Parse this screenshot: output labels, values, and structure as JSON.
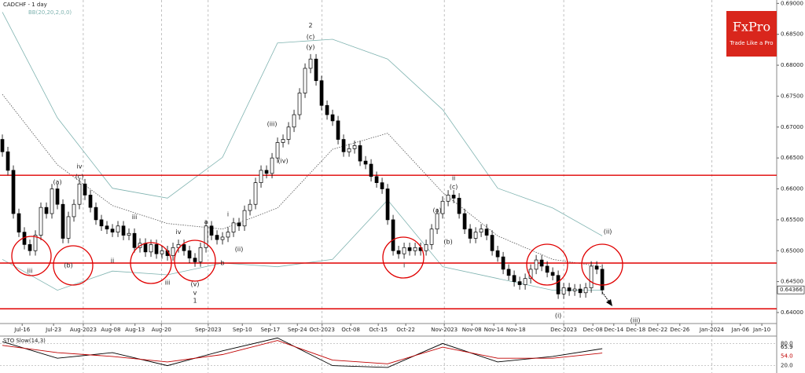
{
  "header": {
    "symbol": "CADCHF - 1 day",
    "indicator": "BB(20,20,2,0,0)"
  },
  "logo": {
    "brand": "FxPro",
    "tagline": "Trade Like a Pro"
  },
  "chart_data": [
    {
      "type": "candlestick",
      "colors": {
        "up": "#ffffff",
        "down": "#000000"
      },
      "candles": [
        [
          0.668,
          0.6688,
          0.6652,
          0.666
        ],
        [
          0.666,
          0.6668,
          0.6622,
          0.663
        ],
        [
          0.663,
          0.6638,
          0.6552,
          0.656
        ],
        [
          0.656,
          0.6568,
          0.6522,
          0.653
        ],
        [
          0.653,
          0.6538,
          0.6502,
          0.651
        ],
        [
          0.651,
          0.6518,
          0.6492,
          0.65
        ],
        [
          0.65,
          0.6533,
          0.6492,
          0.6525
        ],
        [
          0.6525,
          0.6578,
          0.6517,
          0.657
        ],
        [
          0.657,
          0.6578,
          0.6552,
          0.656
        ],
        [
          0.656,
          0.6608,
          0.6552,
          0.66
        ],
        [
          0.66,
          0.6608,
          0.6567,
          0.6575
        ],
        [
          0.6575,
          0.6583,
          0.6512,
          0.652
        ],
        [
          0.652,
          0.6563,
          0.6512,
          0.6555
        ],
        [
          0.6555,
          0.6583,
          0.6547,
          0.6575
        ],
        [
          0.6575,
          0.6616,
          0.6567,
          0.6608
        ],
        [
          0.6608,
          0.6616,
          0.6582,
          0.659
        ],
        [
          0.659,
          0.6598,
          0.6562,
          0.657
        ],
        [
          0.657,
          0.6578,
          0.6542,
          0.655
        ],
        [
          0.655,
          0.6558,
          0.6532,
          0.654
        ],
        [
          0.654,
          0.6548,
          0.6527,
          0.6535
        ],
        [
          0.6535,
          0.6543,
          0.6522,
          0.653
        ],
        [
          0.653,
          0.6548,
          0.6522,
          0.654
        ],
        [
          0.654,
          0.6548,
          0.6517,
          0.6525
        ],
        [
          0.6525,
          0.6536,
          0.6517,
          0.6528
        ],
        [
          0.6528,
          0.6536,
          0.6497,
          0.6505
        ],
        [
          0.6505,
          0.652,
          0.6497,
          0.6512
        ],
        [
          0.6512,
          0.652,
          0.649,
          0.6498
        ],
        [
          0.6498,
          0.6518,
          0.649,
          0.651
        ],
        [
          0.651,
          0.6518,
          0.6487,
          0.6495
        ],
        [
          0.6495,
          0.6508,
          0.6487,
          0.65
        ],
        [
          0.65,
          0.6508,
          0.6484,
          0.6492
        ],
        [
          0.6492,
          0.6513,
          0.6484,
          0.6505
        ],
        [
          0.6505,
          0.6518,
          0.6497,
          0.651
        ],
        [
          0.651,
          0.6518,
          0.6492,
          0.65
        ],
        [
          0.65,
          0.6508,
          0.648,
          0.6488
        ],
        [
          0.6488,
          0.6496,
          0.6474,
          0.6482
        ],
        [
          0.6482,
          0.6513,
          0.6474,
          0.6505
        ],
        [
          0.6505,
          0.6548,
          0.6497,
          0.654
        ],
        [
          0.654,
          0.6548,
          0.6517,
          0.6525
        ],
        [
          0.6525,
          0.6533,
          0.651,
          0.6518
        ],
        [
          0.6518,
          0.653,
          0.651,
          0.6522
        ],
        [
          0.6522,
          0.6538,
          0.6514,
          0.653
        ],
        [
          0.653,
          0.6553,
          0.6522,
          0.6545
        ],
        [
          0.6545,
          0.6553,
          0.6532,
          0.654
        ],
        [
          0.654,
          0.6573,
          0.6532,
          0.6565
        ],
        [
          0.6565,
          0.6583,
          0.6557,
          0.6575
        ],
        [
          0.6575,
          0.6618,
          0.6567,
          0.661
        ],
        [
          0.661,
          0.6638,
          0.6602,
          0.663
        ],
        [
          0.663,
          0.6638,
          0.6617,
          0.6625
        ],
        [
          0.6625,
          0.6658,
          0.6617,
          0.665
        ],
        [
          0.665,
          0.6683,
          0.6642,
          0.6675
        ],
        [
          0.6675,
          0.6688,
          0.6667,
          0.668
        ],
        [
          0.668,
          0.6708,
          0.6672,
          0.67
        ],
        [
          0.67,
          0.6728,
          0.6692,
          0.672
        ],
        [
          0.672,
          0.6763,
          0.6712,
          0.6755
        ],
        [
          0.6755,
          0.6803,
          0.6747,
          0.6795
        ],
        [
          0.6795,
          0.6818,
          0.6787,
          0.681
        ],
        [
          0.681,
          0.6818,
          0.6767,
          0.6775
        ],
        [
          0.6775,
          0.6783,
          0.6727,
          0.6735
        ],
        [
          0.6735,
          0.6743,
          0.6712,
          0.672
        ],
        [
          0.672,
          0.6728,
          0.6702,
          0.671
        ],
        [
          0.671,
          0.6718,
          0.6672,
          0.668
        ],
        [
          0.668,
          0.6688,
          0.6652,
          0.666
        ],
        [
          0.666,
          0.6673,
          0.6652,
          0.6665
        ],
        [
          0.6665,
          0.6678,
          0.6657,
          0.667
        ],
        [
          0.667,
          0.6678,
          0.6637,
          0.6645
        ],
        [
          0.6645,
          0.6653,
          0.6632,
          0.664
        ],
        [
          0.664,
          0.6648,
          0.6612,
          0.662
        ],
        [
          0.662,
          0.6628,
          0.6602,
          0.661
        ],
        [
          0.661,
          0.6618,
          0.6592,
          0.66
        ],
        [
          0.66,
          0.6608,
          0.6542,
          0.655
        ],
        [
          0.655,
          0.6558,
          0.6492,
          0.65
        ],
        [
          0.65,
          0.6508,
          0.6487,
          0.6495
        ],
        [
          0.6495,
          0.6513,
          0.6487,
          0.6505
        ],
        [
          0.6505,
          0.6513,
          0.6492,
          0.65
        ],
        [
          0.65,
          0.6513,
          0.6492,
          0.6505
        ],
        [
          0.6505,
          0.6513,
          0.6492,
          0.65
        ],
        [
          0.65,
          0.6518,
          0.6492,
          0.651
        ],
        [
          0.651,
          0.6543,
          0.6502,
          0.6535
        ],
        [
          0.6535,
          0.6568,
          0.6527,
          0.656
        ],
        [
          0.656,
          0.6588,
          0.6552,
          0.658
        ],
        [
          0.658,
          0.6598,
          0.6572,
          0.659
        ],
        [
          0.659,
          0.6598,
          0.6577,
          0.6585
        ],
        [
          0.6585,
          0.6593,
          0.6552,
          0.656
        ],
        [
          0.656,
          0.6568,
          0.6527,
          0.6535
        ],
        [
          0.6535,
          0.6543,
          0.6512,
          0.652
        ],
        [
          0.652,
          0.6538,
          0.6512,
          0.653
        ],
        [
          0.653,
          0.6543,
          0.6522,
          0.6535
        ],
        [
          0.6535,
          0.6543,
          0.6517,
          0.6525
        ],
        [
          0.6525,
          0.6533,
          0.6492,
          0.65
        ],
        [
          0.65,
          0.6508,
          0.6482,
          0.649
        ],
        [
          0.649,
          0.6498,
          0.6462,
          0.647
        ],
        [
          0.647,
          0.6478,
          0.6452,
          0.646
        ],
        [
          0.646,
          0.6468,
          0.6442,
          0.645
        ],
        [
          0.645,
          0.6458,
          0.6437,
          0.6445
        ],
        [
          0.6445,
          0.6463,
          0.6437,
          0.6455
        ],
        [
          0.6455,
          0.6478,
          0.6447,
          0.647
        ],
        [
          0.647,
          0.6493,
          0.6462,
          0.6485
        ],
        [
          0.6485,
          0.6493,
          0.6467,
          0.6475
        ],
        [
          0.6475,
          0.6483,
          0.6457,
          0.6465
        ],
        [
          0.6465,
          0.6473,
          0.6452,
          0.646
        ],
        [
          0.646,
          0.6468,
          0.6422,
          0.643
        ],
        [
          0.643,
          0.6448,
          0.6422,
          0.644
        ],
        [
          0.644,
          0.6448,
          0.6427,
          0.6435
        ],
        [
          0.6435,
          0.6446,
          0.6427,
          0.6438
        ],
        [
          0.6438,
          0.6446,
          0.6424,
          0.6432
        ],
        [
          0.6432,
          0.6448,
          0.6424,
          0.644
        ],
        [
          0.644,
          0.6483,
          0.6432,
          0.6475
        ],
        [
          0.6475,
          0.6483,
          0.6462,
          0.647
        ],
        [
          0.647,
          0.6478,
          0.6429,
          0.64366
        ]
      ],
      "bands": {
        "color": "#7fb3b0",
        "x": [
          0,
          10,
          20,
          30,
          40,
          50,
          60,
          70,
          80,
          90,
          100,
          109
        ],
        "upper": [
          0.6886,
          0.6715,
          0.6601,
          0.6585,
          0.6651,
          0.6836,
          0.6842,
          0.681,
          0.6728,
          0.6601,
          0.6569,
          0.6524
        ],
        "middle": [
          0.6753,
          0.6639,
          0.6573,
          0.6544,
          0.6535,
          0.6569,
          0.6664,
          0.669,
          0.6594,
          0.6524,
          0.6486,
          0.6474
        ],
        "lower": [
          0.6486,
          0.6436,
          0.6467,
          0.6461,
          0.648,
          0.6474,
          0.6486,
          0.6582,
          0.6474,
          0.6455,
          0.6436,
          0.6436
        ]
      },
      "hlines": {
        "color": "#e00000",
        "values": [
          0.6622,
          0.648,
          0.6406
        ]
      },
      "last_price": {
        "value": 0.64366,
        "label": "0.64366"
      },
      "xlim": [
        -0.43,
        140.7
      ],
      "ylim": [
        0.63822,
        0.69055
      ],
      "yticks": [
        {
          "value": 0.64,
          "label": "0.64000"
        },
        {
          "value": 0.645,
          "label": "0.64500"
        },
        {
          "value": 0.65,
          "label": "0.65000"
        },
        {
          "value": 0.655,
          "label": "0.65500"
        },
        {
          "value": 0.66,
          "label": "0.66000"
        },
        {
          "value": 0.665,
          "label": "0.66500"
        },
        {
          "value": 0.67,
          "label": "0.67000"
        },
        {
          "value": 0.675,
          "label": "0.67500"
        },
        {
          "value": 0.68,
          "label": "0.68000"
        },
        {
          "value": 0.685,
          "label": "0.68500"
        },
        {
          "value": 0.69,
          "label": "0.69000"
        }
      ],
      "xticks": [
        {
          "value": 3.6,
          "label": "Jul-16"
        },
        {
          "value": 9.3,
          "label": "Jul-23"
        },
        {
          "value": 14.7,
          "label": "Aug-2023"
        },
        {
          "value": 19.7,
          "label": "Aug-08"
        },
        {
          "value": 24.1,
          "label": "Aug-13"
        },
        {
          "value": 28.9,
          "label": "Aug-20"
        },
        {
          "value": 37.4,
          "label": "Sep-2023"
        },
        {
          "value": 43.6,
          "label": "Sep-10"
        },
        {
          "value": 48.7,
          "label": "Sep-17"
        },
        {
          "value": 53.6,
          "label": "Sep-24"
        },
        {
          "value": 58.1,
          "label": "Oct-2023"
        },
        {
          "value": 63.3,
          "label": "Oct-08"
        },
        {
          "value": 68.3,
          "label": "Oct-15"
        },
        {
          "value": 73.3,
          "label": "Oct-22"
        },
        {
          "value": 80.3,
          "label": "Nov-2023"
        },
        {
          "value": 85.3,
          "label": "Nov-08"
        },
        {
          "value": 89.3,
          "label": "Nov-14"
        },
        {
          "value": 93.3,
          "label": "Nov-18"
        },
        {
          "value": 102,
          "label": "Dec-2023"
        },
        {
          "value": 107.3,
          "label": "Dec-08"
        },
        {
          "value": 111.1,
          "label": "Dec-14"
        },
        {
          "value": 115.1,
          "label": "Dec-18"
        },
        {
          "value": 119.1,
          "label": "Dec-22"
        },
        {
          "value": 123.1,
          "label": "Dec-26"
        },
        {
          "value": 128.9,
          "label": "Jan-2024"
        },
        {
          "value": 134.1,
          "label": "Jan-06"
        },
        {
          "value": 138,
          "label": "Jan-10"
        }
      ],
      "annotations": [
        {
          "text": "iii",
          "x": 5,
          "y": 0.6467
        },
        {
          "text": "(a)",
          "x": 10,
          "y": 0.6611
        },
        {
          "text": "(b)",
          "x": 12,
          "y": 0.6476
        },
        {
          "text": "iv",
          "x": 14,
          "y": 0.6636
        },
        {
          "text": "(c)",
          "x": 14,
          "y": 0.662
        },
        {
          "text": "ii",
          "x": 20,
          "y": 0.6484
        },
        {
          "text": "iii",
          "x": 24,
          "y": 0.6554
        },
        {
          "text": "iii",
          "x": 30,
          "y": 0.6448
        },
        {
          "text": "iv",
          "x": 32,
          "y": 0.653
        },
        {
          "text": "(v)",
          "x": 35,
          "y": 0.6446
        },
        {
          "text": "v",
          "x": 35,
          "y": 0.6432
        },
        {
          "text": "1",
          "x": 35,
          "y": 0.6419
        },
        {
          "text": "a",
          "x": 37,
          "y": 0.6547
        },
        {
          "text": "b",
          "x": 40,
          "y": 0.648
        },
        {
          "text": "i",
          "x": 41,
          "y": 0.6559
        },
        {
          "text": "(ii)",
          "x": 43,
          "y": 0.6502
        },
        {
          "text": "(iii)",
          "x": 49,
          "y": 0.6705
        },
        {
          "text": "(iv)",
          "x": 51,
          "y": 0.6645
        },
        {
          "text": "2",
          "x": 56,
          "y": 0.6864
        },
        {
          "text": "(c)",
          "x": 56,
          "y": 0.6846
        },
        {
          "text": "(y)",
          "x": 56,
          "y": 0.6829
        },
        {
          "text": "i",
          "x": 73,
          "y": 0.6476
        },
        {
          "text": "(a)",
          "x": 79,
          "y": 0.6565
        },
        {
          "text": "(b)",
          "x": 81,
          "y": 0.6514
        },
        {
          "text": "ii",
          "x": 82,
          "y": 0.6617
        },
        {
          "text": "(c)",
          "x": 82,
          "y": 0.6603
        },
        {
          "text": "(i)",
          "x": 101,
          "y": 0.6395
        },
        {
          "text": "(ii)",
          "x": 110,
          "y": 0.6531
        },
        {
          "text": "(iii)",
          "x": 115,
          "y": 0.6387
        }
      ]
    },
    {
      "type": "line",
      "title": "STO Slow(14,3)",
      "x": [
        0,
        10,
        20,
        30,
        40,
        50,
        60,
        70,
        80,
        90,
        100,
        109
      ],
      "series": [
        {
          "color": "#000000",
          "values": [
            85,
            40,
            55,
            20,
            60,
            95,
            20,
            15,
            80,
            30,
            45,
            65.9
          ],
          "last_label": "65.9"
        },
        {
          "color": "#c00000",
          "values": [
            75,
            55,
            45,
            30,
            50,
            88,
            35,
            25,
            70,
            40,
            40,
            54
          ],
          "last_label": "54.0"
        }
      ],
      "xlim": [
        -0.43,
        140.7
      ],
      "ylim": [
        0,
        100
      ],
      "yticks": [
        {
          "value": 80,
          "label": "80.0"
        },
        {
          "value": 20,
          "label": "20.0"
        }
      ]
    }
  ]
}
